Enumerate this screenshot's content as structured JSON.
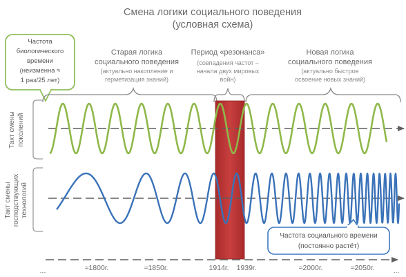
{
  "title": [
    "Смена логики социального поведения",
    "(условная схема)"
  ],
  "callout_generations": [
    "Частота",
    "биологического",
    "времени",
    "(неизменна ≈",
    "1 раз/25 лет)"
  ],
  "periods": {
    "old": {
      "title": [
        "Старая логика",
        "социального поведения"
      ],
      "note": [
        "(актуально накопление и",
        "герметизация знаний)"
      ]
    },
    "resonance": {
      "title": [
        "Период «резонанса»"
      ],
      "note": [
        "(совпадения частот –",
        "начала двух мировых",
        "войн)"
      ]
    },
    "new": {
      "title": [
        "Новая логика",
        "социального поведения"
      ],
      "note": [
        "(актуально быстрое",
        "освоение новых знаний)"
      ]
    }
  },
  "rows": {
    "generations": [
      "Такт смены",
      "поколений"
    ],
    "technologies": [
      "Такт смены",
      "господствующих",
      "технологий"
    ]
  },
  "callout_social": [
    "Частота социального времени",
    "(постоянно растёт)"
  ],
  "axis_labels": [
    "...",
    "≈1800г.",
    "≈1850г.",
    "1914г.",
    "1939г.",
    "≈2000г.",
    "≈2050г.",
    "..."
  ],
  "colors": {
    "green_wave": "#8fb84a",
    "blue_wave": "#3a72b8",
    "resonance_fill": "#c0393a",
    "axis": "#5f5f5f",
    "text": "#6b6b6b",
    "green_border": "#8fbf5a",
    "blue_border": "#3d79c4"
  }
}
